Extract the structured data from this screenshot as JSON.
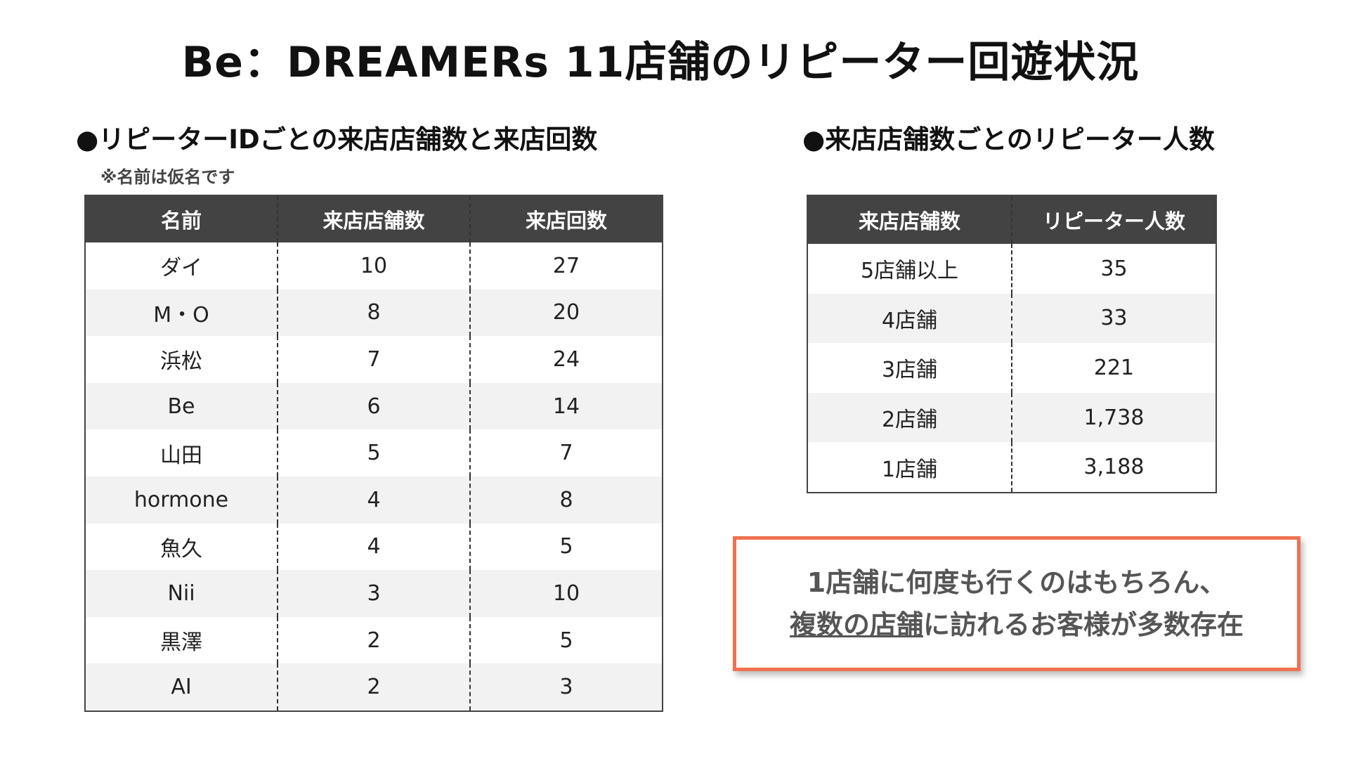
{
  "title": "Be：DREAMERs 11店舗のリピーター回遊状況",
  "left_section": {
    "heading": "●リピーターIDごとの来店店舗数と来店回数",
    "note": "※名前は仮名です",
    "columns": [
      "名前",
      "来店店舗数",
      "来店回数"
    ],
    "rows": [
      [
        "ダイ",
        "10",
        "27"
      ],
      [
        "M・O",
        "8",
        "20"
      ],
      [
        "浜松",
        "7",
        "24"
      ],
      [
        "Be",
        "6",
        "14"
      ],
      [
        "山田",
        "5",
        "7"
      ],
      [
        "hormone",
        "4",
        "8"
      ],
      [
        "魚久",
        "4",
        "5"
      ],
      [
        "Nii",
        "3",
        "10"
      ],
      [
        "黒澤",
        "2",
        "5"
      ],
      [
        "AI",
        "2",
        "3"
      ]
    ]
  },
  "right_section": {
    "heading": "●来店店舗数ごとのリピーター人数",
    "columns": [
      "来店店舗数",
      "リピーター人数"
    ],
    "rows": [
      [
        "5店舗以上",
        "35"
      ],
      [
        "4店舗",
        "33"
      ],
      [
        "3店舗",
        "221"
      ],
      [
        "2店舗",
        "1,738"
      ],
      [
        "1店舗",
        "3,188"
      ]
    ]
  },
  "callout": {
    "line1": "1店舗に何度も行くのはもちろん、",
    "line2_underlined": "複数の店舗",
    "line2_rest": "に訪れるお客様が多数存在",
    "border_color": "#ee7251"
  }
}
